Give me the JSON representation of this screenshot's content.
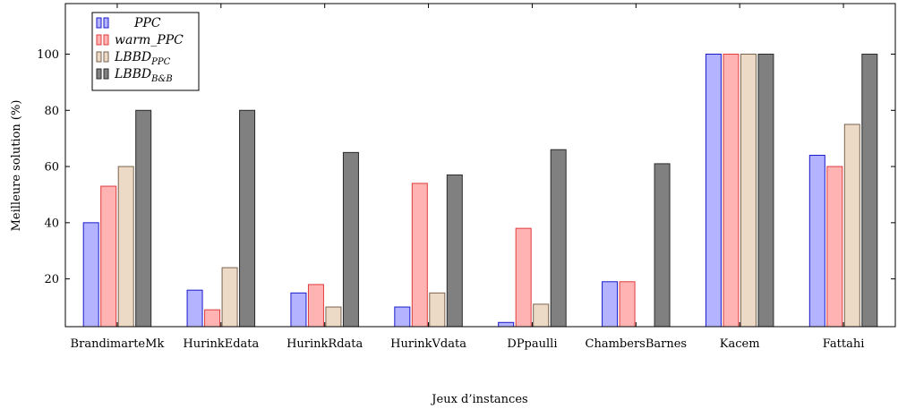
{
  "chart_data": {
    "type": "bar",
    "xlabel": "Jeux d’instances",
    "ylabel": "Meilleure solution (%)",
    "ylim": [
      3,
      118
    ],
    "yticks": [
      20,
      40,
      60,
      80,
      100
    ],
    "grid": false,
    "legend_position": "top-left",
    "categories": [
      "BrandimarteMk",
      "HurinkEdata",
      "HurinkRdata",
      "HurinkVdata",
      "DPpaulli",
      "ChambersBarnes",
      "Kacem",
      "Fattahi"
    ],
    "series": [
      {
        "name": "PPC",
        "name_main": "PPC",
        "name_sub": "",
        "fill": "#b3b3ff",
        "stroke": "#1a1acc",
        "values": [
          40,
          16,
          15,
          10,
          4.5,
          19,
          100,
          64
        ]
      },
      {
        "name": "warm_PPC",
        "name_main": "warm_PPC",
        "name_sub": "",
        "fill": "#ffb3b3",
        "stroke": "#e03c3c",
        "values": [
          53,
          9,
          18,
          54,
          38,
          19,
          100,
          60
        ]
      },
      {
        "name": "LBBD_PPC",
        "name_main": "LBBD",
        "name_sub": "PPC",
        "fill": "#ecd9c6",
        "stroke": "#7a6450",
        "values": [
          60,
          24,
          10,
          15,
          11,
          null,
          100,
          75
        ]
      },
      {
        "name": "LBBD_B&B",
        "name_main": "LBBD",
        "name_sub": "B&B",
        "fill": "#808080",
        "stroke": "#2a2a2a",
        "values": [
          80,
          80,
          65,
          57,
          66,
          61,
          100,
          100
        ]
      }
    ]
  }
}
